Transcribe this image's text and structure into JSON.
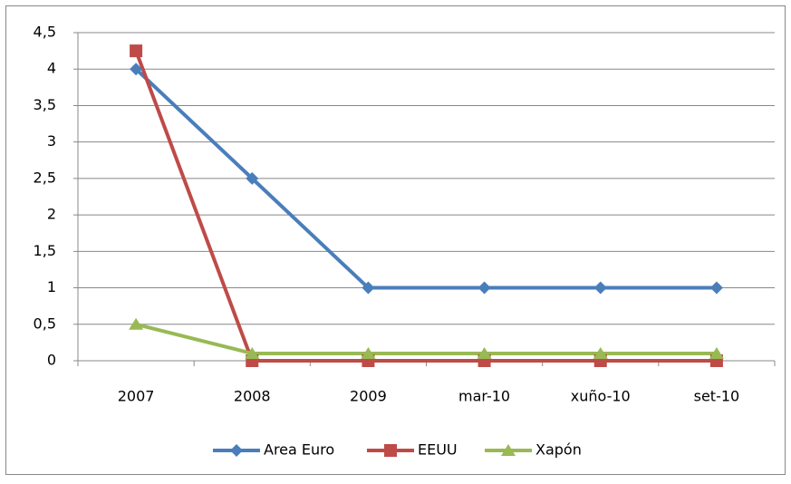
{
  "chart_data": {
    "type": "line",
    "categories": [
      "2007",
      "2008",
      "2009",
      "mar-10",
      "xuño-10",
      "set-10"
    ],
    "series": [
      {
        "name": "Area Euro",
        "color": "#4a7ebb",
        "marker": "diamond",
        "values": [
          4,
          2.5,
          1,
          1,
          1,
          1
        ]
      },
      {
        "name": "EEUU",
        "color": "#be4b48",
        "marker": "square",
        "values": [
          4.25,
          0,
          0,
          0,
          0,
          0
        ]
      },
      {
        "name": "Xapón",
        "color": "#98b954",
        "marker": "triangle",
        "values": [
          0.5,
          0.1,
          0.1,
          0.1,
          0.1,
          0.1
        ]
      }
    ],
    "ylim": [
      0,
      4.5
    ],
    "yticks": [
      0,
      {
        "value": 0.5,
        "label": "0,5"
      },
      1,
      {
        "value": 1.5,
        "label": "1,5"
      },
      2,
      {
        "value": 2.5,
        "label": "2,5"
      },
      3,
      {
        "value": 3.5,
        "label": "3,5"
      },
      4,
      {
        "value": 4.5,
        "label": "4,5"
      }
    ],
    "grid": true,
    "legend": "bottom"
  }
}
